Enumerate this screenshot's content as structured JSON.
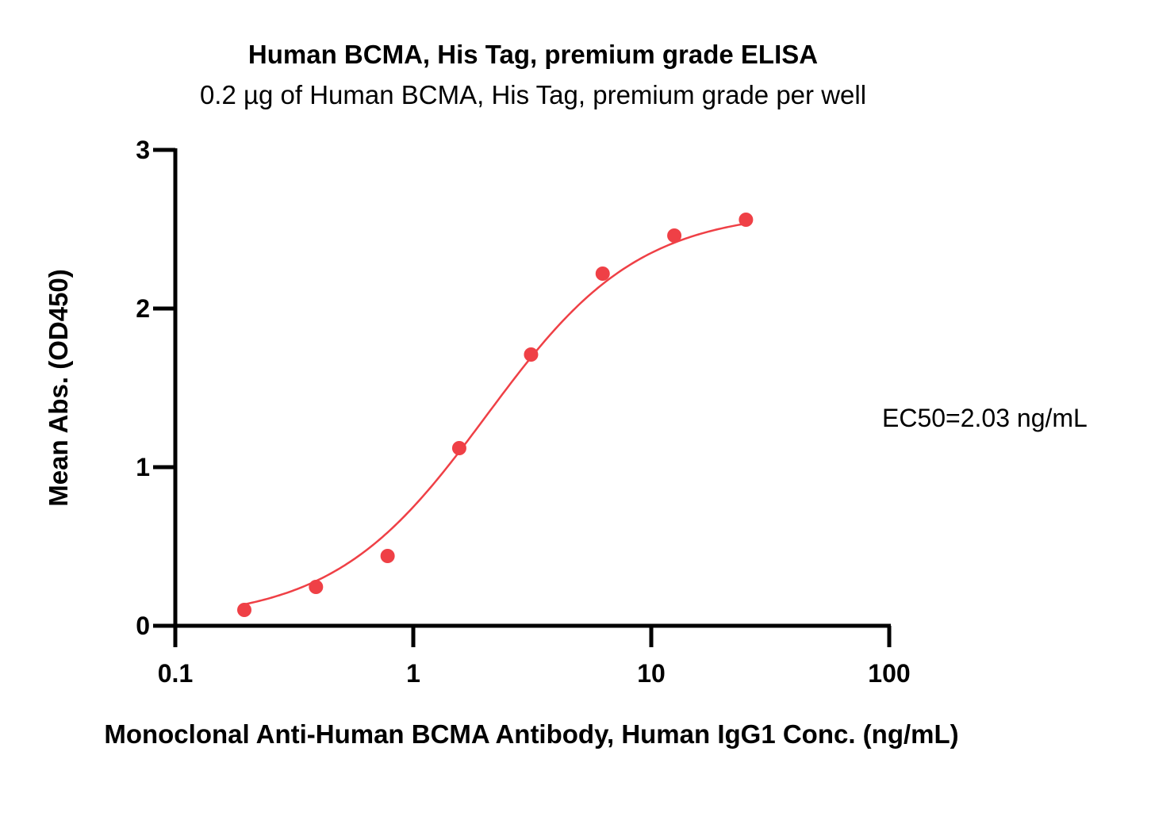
{
  "chart_data": {
    "type": "scatter",
    "title": "Human BCMA, His Tag, premium grade ELISA",
    "subtitle": "0.2 µg of Human BCMA, His Tag, premium grade per well",
    "xlabel": "Monoclonal Anti-Human BCMA Antibody, Human IgG1 Conc. (ng/mL)",
    "ylabel": "Mean Abs. (OD450)",
    "x_scale": "log",
    "xlim": [
      0.1,
      100
    ],
    "ylim": [
      0,
      3
    ],
    "x_ticks": [
      0.1,
      1,
      10,
      100
    ],
    "x_tick_labels": [
      "0.1",
      "1",
      "10",
      "100"
    ],
    "y_ticks": [
      0,
      1,
      2,
      3
    ],
    "y_tick_labels": [
      "0",
      "1",
      "2",
      "3"
    ],
    "grid": false,
    "colors": {
      "series": "#ef4046",
      "axis": "#000000"
    },
    "series": [
      {
        "x": [
          0.195,
          0.39,
          0.78,
          1.56,
          3.125,
          6.25,
          12.5,
          25
        ],
        "y": [
          0.1,
          0.245,
          0.44,
          1.12,
          1.71,
          2.22,
          2.46,
          2.56
        ]
      }
    ],
    "fit_curve": {
      "model": "4PL",
      "bottom": 0.03,
      "top": 2.62,
      "ec50": 2.03,
      "hill": 1.35
    },
    "annotation": "EC50=2.03 ng/mL"
  }
}
